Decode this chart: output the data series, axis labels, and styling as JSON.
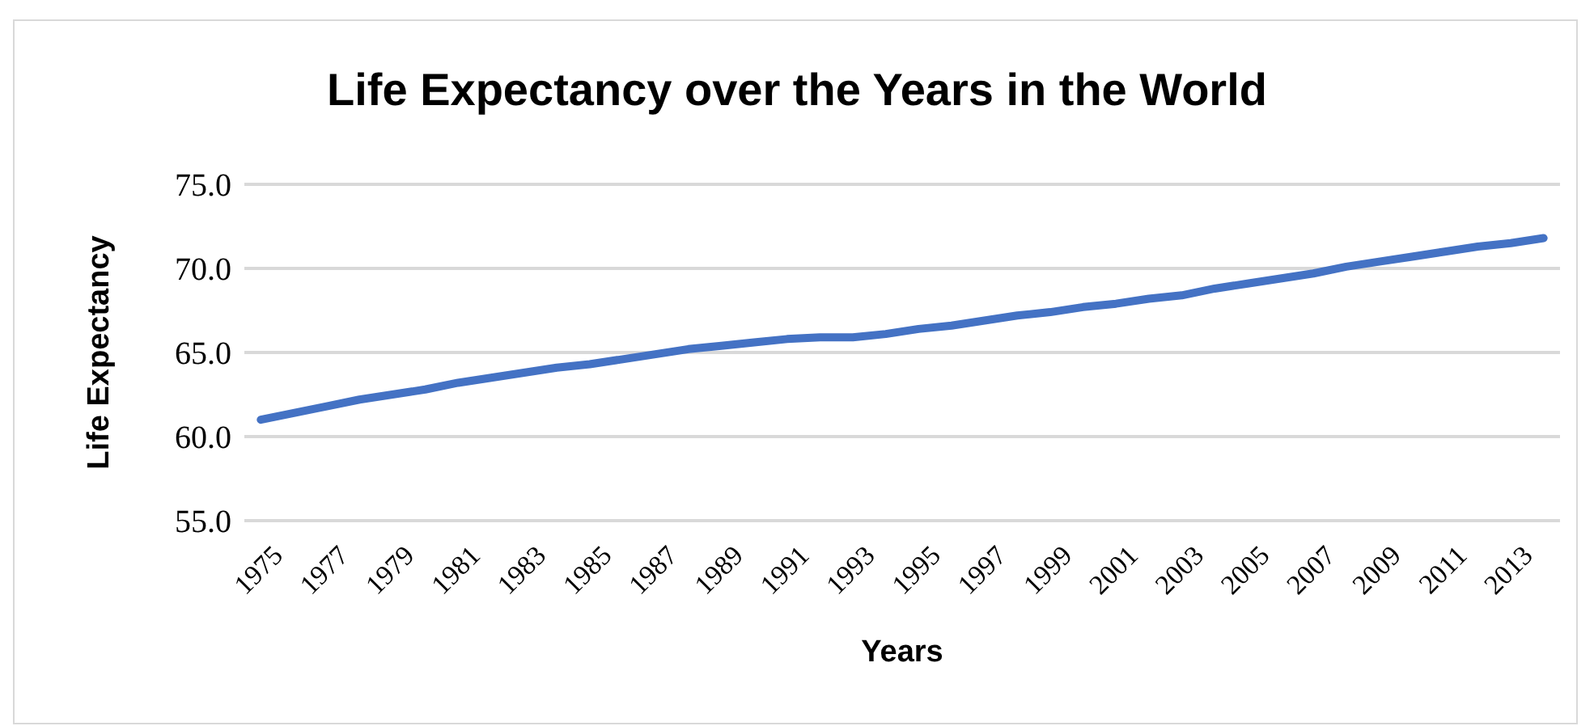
{
  "chart_data": {
    "type": "line",
    "title": "Life Expectancy over the Years in the World",
    "xlabel": "Years",
    "ylabel": "Life Expectancy",
    "categories": [
      "1975",
      null,
      "1977",
      null,
      "1979",
      null,
      "1981",
      null,
      "1983",
      null,
      "1985",
      null,
      "1987",
      null,
      "1989",
      null,
      "1991",
      null,
      "1993",
      null,
      "1995",
      null,
      "1997",
      null,
      "1999",
      null,
      "2001",
      null,
      "2003",
      null,
      "2005",
      null,
      "2007",
      null,
      "2009",
      null,
      "2011",
      null,
      "2013",
      null
    ],
    "series": [
      {
        "color": "#4472c4",
        "values": [
          61.0,
          61.4,
          61.8,
          62.2,
          62.5,
          62.8,
          63.2,
          63.5,
          63.8,
          64.1,
          64.3,
          64.6,
          64.9,
          65.2,
          65.4,
          65.6,
          65.8,
          65.9,
          65.9,
          66.1,
          66.4,
          66.6,
          66.9,
          67.2,
          67.4,
          67.7,
          67.9,
          68.2,
          68.4,
          68.8,
          69.1,
          69.4,
          69.7,
          70.1,
          70.4,
          70.7,
          71.0,
          71.3,
          71.5,
          71.8
        ]
      }
    ],
    "ylim": [
      55,
      75
    ],
    "yticks": [
      {
        "value": 55,
        "label": "55.0"
      },
      {
        "value": 60,
        "label": "60.0"
      },
      {
        "value": 65,
        "label": "65.0"
      },
      {
        "value": 70,
        "label": "70.0"
      },
      {
        "value": 75,
        "label": "75.0"
      }
    ],
    "grid": "y",
    "legend": false,
    "marker": "none",
    "line_style": "solid"
  }
}
